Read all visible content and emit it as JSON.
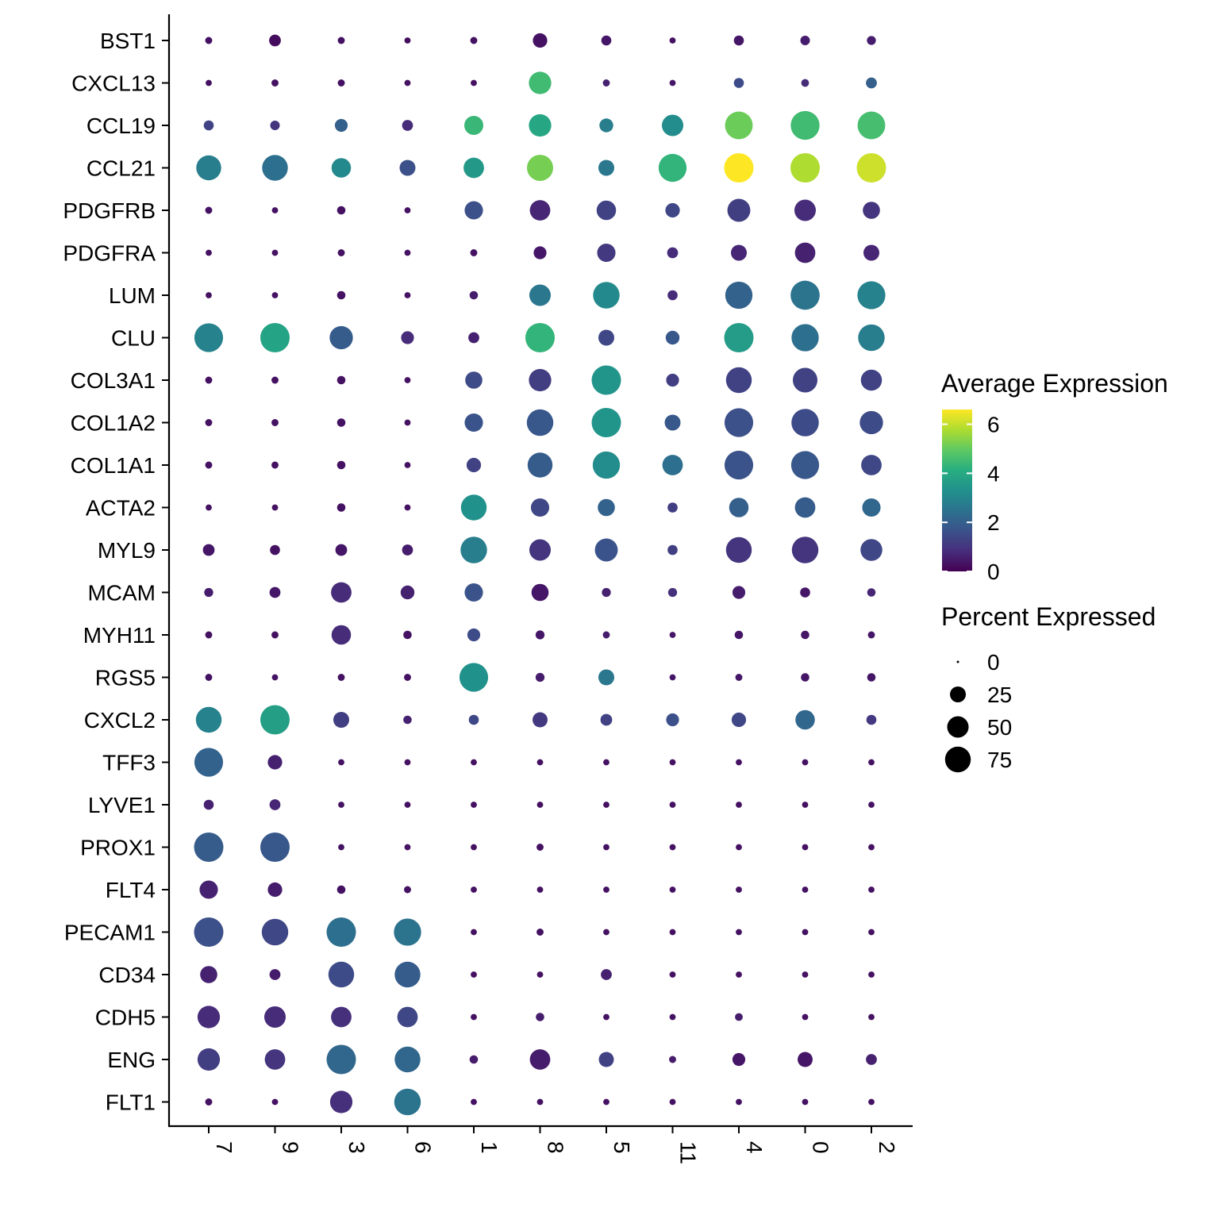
{
  "chart_data": {
    "type": "dotplot",
    "x_categories": [
      "7",
      "9",
      "3",
      "6",
      "1",
      "8",
      "5",
      "11",
      "4",
      "0",
      "2"
    ],
    "genes": [
      "BST1",
      "CXCL13",
      "CCL19",
      "CCL21",
      "PDGFRB",
      "PDGFRA",
      "LUM",
      "CLU",
      "COL3A1",
      "COL1A2",
      "COL1A1",
      "ACTA2",
      "MYL9",
      "MCAM",
      "MYH11",
      "RGS5",
      "CXCL2",
      "TFF3",
      "LYVE1",
      "PROX1",
      "FLT4",
      "PECAM1",
      "CD34",
      "CDH5",
      "ENG",
      "FLT1"
    ],
    "avg_expression": [
      [
        0.3,
        0.2,
        0.3,
        0.2,
        0.3,
        0.3,
        0.4,
        0.3,
        0.4,
        0.5,
        0.5
      ],
      [
        0.3,
        0.3,
        0.3,
        0.3,
        0.3,
        4.5,
        0.6,
        0.4,
        1.5,
        0.8,
        2.0
      ],
      [
        1.3,
        1.0,
        2.0,
        0.8,
        4.4,
        3.9,
        2.8,
        3.2,
        5.1,
        4.5,
        4.6
      ],
      [
        2.8,
        2.4,
        3.1,
        1.6,
        3.5,
        5.2,
        2.6,
        4.3,
        6.6,
        5.8,
        6.1
      ],
      [
        0.3,
        0.3,
        0.3,
        0.3,
        1.6,
        0.7,
        1.3,
        1.4,
        1.2,
        0.8,
        1.0
      ],
      [
        0.3,
        0.3,
        0.3,
        0.3,
        0.3,
        0.4,
        1.1,
        0.8,
        0.7,
        0.6,
        0.7
      ],
      [
        0.3,
        0.3,
        0.3,
        0.3,
        0.5,
        2.6,
        3.1,
        0.8,
        2.1,
        2.5,
        2.9
      ],
      [
        2.9,
        3.8,
        1.9,
        0.8,
        0.6,
        4.3,
        1.4,
        1.8,
        3.6,
        2.4,
        2.8
      ],
      [
        0.3,
        0.3,
        0.3,
        0.3,
        1.5,
        1.2,
        3.4,
        1.2,
        1.3,
        1.3,
        1.3
      ],
      [
        0.3,
        0.3,
        0.3,
        0.3,
        1.7,
        1.8,
        3.4,
        1.8,
        1.6,
        1.5,
        1.5
      ],
      [
        0.3,
        0.3,
        0.3,
        0.3,
        1.3,
        1.9,
        3.2,
        2.4,
        1.7,
        1.8,
        1.4
      ],
      [
        0.3,
        0.3,
        0.3,
        0.3,
        3.3,
        1.4,
        2.1,
        1.2,
        2.0,
        1.9,
        2.2
      ],
      [
        0.4,
        0.3,
        0.4,
        0.5,
        2.8,
        1.0,
        1.7,
        1.2,
        1.0,
        1.0,
        1.4
      ],
      [
        0.5,
        0.4,
        0.8,
        0.6,
        1.7,
        0.4,
        0.6,
        0.9,
        0.5,
        0.4,
        0.7
      ],
      [
        0.3,
        0.3,
        0.8,
        0.3,
        1.5,
        0.4,
        0.5,
        0.4,
        0.4,
        0.4,
        0.4
      ],
      [
        0.3,
        0.3,
        0.3,
        0.3,
        3.3,
        0.5,
        2.6,
        0.4,
        0.4,
        0.4,
        0.4
      ],
      [
        2.9,
        3.7,
        1.2,
        0.6,
        1.4,
        1.1,
        1.3,
        1.6,
        1.4,
        2.2,
        1.1
      ],
      [
        2.1,
        0.6,
        0.3,
        0.3,
        0.3,
        0.3,
        0.3,
        0.3,
        0.3,
        0.3,
        0.3
      ],
      [
        0.6,
        0.7,
        0.3,
        0.3,
        0.3,
        0.3,
        0.3,
        0.3,
        0.3,
        0.3,
        0.3
      ],
      [
        1.9,
        1.8,
        0.3,
        0.3,
        0.3,
        0.3,
        0.3,
        0.3,
        0.3,
        0.3,
        0.3
      ],
      [
        0.6,
        0.5,
        0.3,
        0.3,
        0.3,
        0.3,
        0.3,
        0.3,
        0.3,
        0.3,
        0.3
      ],
      [
        1.6,
        1.4,
        2.4,
        2.5,
        0.3,
        0.3,
        0.3,
        0.3,
        0.3,
        0.3,
        0.3
      ],
      [
        0.6,
        0.5,
        1.5,
        1.9,
        0.3,
        0.3,
        0.6,
        0.3,
        0.3,
        0.3,
        0.3
      ],
      [
        0.8,
        0.8,
        0.9,
        1.4,
        0.3,
        0.5,
        0.3,
        0.3,
        0.5,
        0.3,
        0.3
      ],
      [
        1.2,
        1.0,
        2.2,
        2.2,
        0.5,
        0.5,
        1.3,
        0.5,
        0.4,
        0.4,
        0.6
      ],
      [
        0.3,
        0.3,
        0.9,
        2.5,
        0.3,
        0.3,
        0.3,
        0.3,
        0.3,
        0.3,
        0.3
      ]
    ],
    "pct_expressed": [
      [
        3,
        12,
        3,
        2,
        3,
        20,
        8,
        2,
        8,
        7,
        6
      ],
      [
        2,
        3,
        3,
        2,
        2,
        55,
        3,
        2,
        8,
        4,
        10
      ],
      [
        8,
        7,
        15,
        10,
        38,
        55,
        18,
        50,
        88,
        96,
        88
      ],
      [
        70,
        75,
        40,
        25,
        45,
        78,
        25,
        90,
        100,
        100,
        100
      ],
      [
        3,
        2,
        5,
        2,
        35,
        45,
        40,
        20,
        58,
        50,
        30
      ],
      [
        2,
        2,
        3,
        2,
        3,
        15,
        35,
        10,
        25,
        45,
        25
      ],
      [
        2,
        2,
        5,
        2,
        5,
        50,
        80,
        8,
        85,
        98,
        90
      ],
      [
        95,
        100,
        60,
        15,
        10,
        100,
        25,
        18,
        100,
        85,
        80
      ],
      [
        3,
        3,
        5,
        2,
        30,
        55,
        100,
        15,
        75,
        68,
        48
      ],
      [
        3,
        3,
        5,
        2,
        35,
        80,
        100,
        25,
        95,
        86,
        60
      ],
      [
        3,
        3,
        5,
        2,
        20,
        70,
        85,
        45,
        95,
        90,
        45
      ],
      [
        2,
        2,
        5,
        2,
        75,
        35,
        30,
        8,
        40,
        45,
        35
      ],
      [
        12,
        8,
        12,
        10,
        80,
        50,
        58,
        8,
        75,
        80,
        52
      ],
      [
        6,
        10,
        45,
        18,
        35,
        30,
        6,
        6,
        15,
        8,
        5
      ],
      [
        3,
        3,
        40,
        5,
        15,
        6,
        3,
        2,
        5,
        5,
        3
      ],
      [
        3,
        2,
        3,
        3,
        95,
        6,
        25,
        2,
        3,
        5,
        5
      ],
      [
        75,
        100,
        25,
        5,
        8,
        22,
        12,
        15,
        20,
        40,
        8
      ],
      [
        95,
        20,
        2,
        2,
        2,
        2,
        2,
        2,
        2,
        2,
        2
      ],
      [
        8,
        10,
        2,
        2,
        2,
        2,
        2,
        2,
        2,
        2,
        2
      ],
      [
        100,
        100,
        2,
        2,
        2,
        3,
        2,
        2,
        2,
        2,
        2
      ],
      [
        35,
        20,
        5,
        3,
        2,
        2,
        2,
        2,
        2,
        2,
        2
      ],
      [
        100,
        80,
        100,
        85,
        2,
        3,
        2,
        2,
        2,
        2,
        2
      ],
      [
        30,
        10,
        75,
        75,
        2,
        2,
        10,
        2,
        2,
        2,
        2
      ],
      [
        55,
        50,
        45,
        45,
        2,
        5,
        2,
        2,
        4,
        2,
        2
      ],
      [
        55,
        45,
        100,
        75,
        5,
        45,
        22,
        3,
        15,
        22,
        10
      ],
      [
        3,
        2,
        55,
        80,
        2,
        2,
        2,
        2,
        2,
        2,
        2
      ]
    ],
    "color_legend": {
      "title": "Average Expression",
      "ticks": [
        0,
        2,
        4,
        6
      ],
      "range": [
        0,
        6.6
      ],
      "colormap": "viridis"
    },
    "size_legend": {
      "title": "Percent Expressed",
      "ticks": [
        0,
        25,
        50,
        75
      ],
      "range": [
        0,
        100
      ]
    },
    "grid": false,
    "legend_placement": "right"
  }
}
